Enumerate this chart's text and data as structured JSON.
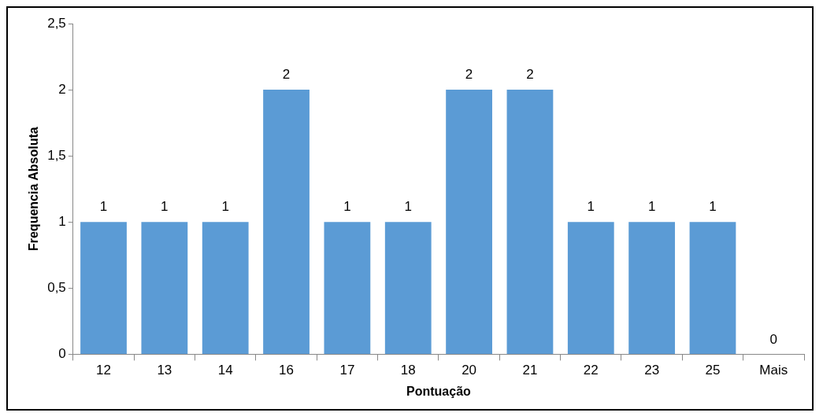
{
  "chart_data": {
    "type": "bar",
    "xlabel": "Pontuação",
    "ylabel": "Frequencia Absoluta",
    "categories": [
      "12",
      "13",
      "14",
      "16",
      "17",
      "18",
      "20",
      "21",
      "22",
      "23",
      "25",
      "Mais"
    ],
    "values": [
      1,
      1,
      1,
      2,
      1,
      1,
      2,
      2,
      1,
      1,
      1,
      0
    ],
    "color": "#5b9bd5",
    "ylim": [
      0,
      2.5
    ],
    "yticks": [
      0,
      {
        "value": 0.5,
        "label": "0,5"
      },
      1,
      {
        "value": 1.5,
        "label": "1,5"
      },
      2,
      {
        "value": 2.5,
        "label": "2,5"
      }
    ],
    "grid": false,
    "legend": false,
    "data_labels": true
  }
}
